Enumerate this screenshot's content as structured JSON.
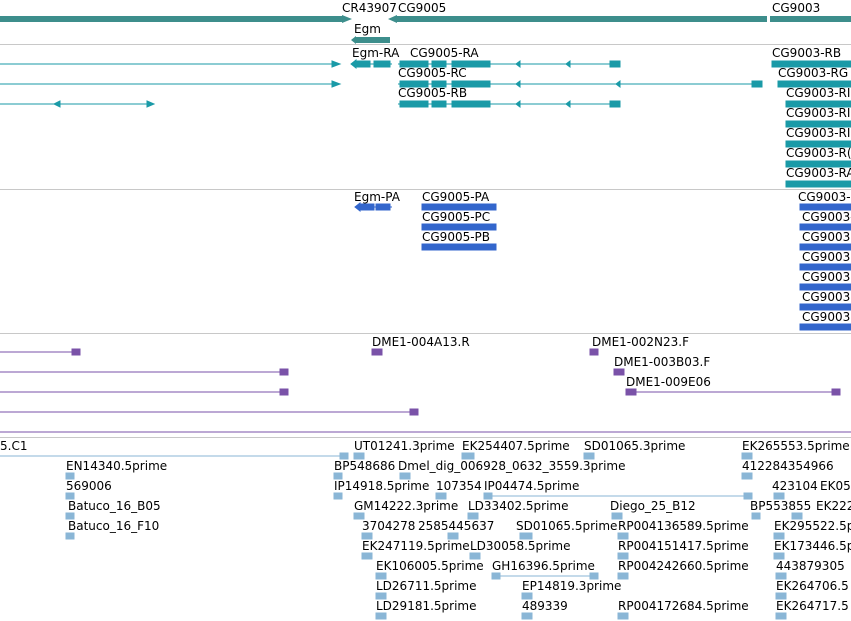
{
  "colors": {
    "gene": "#3d8e8c",
    "transcript": "#1a9aa7",
    "protein": "#3366cc",
    "clone": "#7a52a8",
    "est": "#8ab6d6",
    "separator": "#c8c8c8"
  },
  "tracks": {
    "genes": {
      "name": "gene-track",
      "labels": [
        {
          "id": "cr43907",
          "text": "CR43907"
        },
        {
          "id": "cg9005",
          "text": "CG9005"
        },
        {
          "id": "cg9003",
          "text": "CG9003"
        },
        {
          "id": "egm",
          "text": "Egm"
        }
      ]
    },
    "transcripts": {
      "name": "transcript-track",
      "labels": [
        {
          "id": "egm-ra",
          "text": "Egm-RA"
        },
        {
          "id": "cg9005-ra",
          "text": "CG9005-RA"
        },
        {
          "id": "cg9005-rc",
          "text": "CG9005-RC"
        },
        {
          "id": "cg9005-rb",
          "text": "CG9005-RB"
        },
        {
          "id": "cg9003-rb",
          "text": "CG9003-RB"
        },
        {
          "id": "cg9003-rg",
          "text": "CG9003-RG"
        },
        {
          "id": "cg9003-r3",
          "text": "CG9003-RI"
        },
        {
          "id": "cg9003-r4",
          "text": "CG9003-RI"
        },
        {
          "id": "cg9003-r5",
          "text": "CG9003-RI"
        },
        {
          "id": "cg9003-r6",
          "text": "CG9003-R("
        },
        {
          "id": "cg9003-ra",
          "text": "CG9003-RA"
        }
      ]
    },
    "proteins": {
      "name": "protein-track",
      "labels": [
        {
          "id": "egm-pa",
          "text": "Egm-PA"
        },
        {
          "id": "cg9005-pa",
          "text": "CG9005-PA"
        },
        {
          "id": "cg9005-pc",
          "text": "CG9005-PC"
        },
        {
          "id": "cg9005-pb",
          "text": "CG9005-PB"
        },
        {
          "id": "cg9003-p1",
          "text": "CG9003-"
        },
        {
          "id": "cg9003-p2",
          "text": "CG9003-"
        },
        {
          "id": "cg9003-p3",
          "text": "CG9003"
        },
        {
          "id": "cg9003-p4",
          "text": "CG9003"
        },
        {
          "id": "cg9003-p5",
          "text": "CG9003"
        },
        {
          "id": "cg9003-p6",
          "text": "CG9003"
        },
        {
          "id": "cg9003-p7",
          "text": "CG9003"
        }
      ]
    },
    "clones": {
      "name": "clone-track",
      "labels": [
        {
          "id": "dme1-004a13",
          "text": "DME1-004A13.R"
        },
        {
          "id": "dme1-002n23",
          "text": "DME1-002N23.F"
        },
        {
          "id": "dme1-003b03",
          "text": "DME1-003B03.F"
        },
        {
          "id": "dme1-009e06",
          "text": "DME1-009E06"
        }
      ]
    },
    "ests": {
      "name": "est-track",
      "labels": [
        {
          "id": "c1",
          "text": "5.C1"
        },
        {
          "id": "ut01241",
          "text": "UT01241.3prime"
        },
        {
          "id": "ek254407",
          "text": "EK254407.5prime"
        },
        {
          "id": "sd01065-3",
          "text": "SD01065.3prime"
        },
        {
          "id": "ek265553",
          "text": "EK265553.5prime"
        },
        {
          "id": "en14340",
          "text": "EN14340.5prime"
        },
        {
          "id": "bp548686",
          "text": "BP548686"
        },
        {
          "id": "dmel-dig",
          "text": "Dmel_dig_006928_0632_3559.3prime"
        },
        {
          "id": "412284354966",
          "text": "412284354966"
        },
        {
          "id": "569006",
          "text": "569006"
        },
        {
          "id": "ip14918",
          "text": "IP14918.5prime"
        },
        {
          "id": "107354",
          "text": "107354"
        },
        {
          "id": "ip04474",
          "text": "IP04474.5prime"
        },
        {
          "id": "423104",
          "text": "423104"
        },
        {
          "id": "ek05",
          "text": "EK05"
        },
        {
          "id": "batuco-b05",
          "text": "Batuco_16_B05"
        },
        {
          "id": "gm14222",
          "text": "GM14222.3prime"
        },
        {
          "id": "ld33402",
          "text": "LD33402.5prime"
        },
        {
          "id": "diego",
          "text": "Diego_25_B12"
        },
        {
          "id": "bp553855",
          "text": "BP553855"
        },
        {
          "id": "ek222",
          "text": "EK222"
        },
        {
          "id": "batuco-f10",
          "text": "Batuco_16_F10"
        },
        {
          "id": "3704278",
          "text": "3704278"
        },
        {
          "id": "2585445637",
          "text": "2585445637"
        },
        {
          "id": "sd01065-5",
          "text": "SD01065.5prime"
        },
        {
          "id": "rp004136589",
          "text": "RP004136589.5prime"
        },
        {
          "id": "ek295522",
          "text": "EK295522.5p"
        },
        {
          "id": "ek247119",
          "text": "EK247119.5prime"
        },
        {
          "id": "ld30058",
          "text": "LD30058.5prime"
        },
        {
          "id": "rp004151417",
          "text": "RP004151417.5prime"
        },
        {
          "id": "ek173446",
          "text": "EK173446.5p"
        },
        {
          "id": "ek106005",
          "text": "EK106005.5prime"
        },
        {
          "id": "gh16396",
          "text": "GH16396.5prime"
        },
        {
          "id": "rp004242660",
          "text": "RP004242660.5prime"
        },
        {
          "id": "443879305",
          "text": "443879305"
        },
        {
          "id": "ld26711",
          "text": "LD26711.5prime"
        },
        {
          "id": "ep14819",
          "text": "EP14819.3prime"
        },
        {
          "id": "ek264706",
          "text": "EK264706.5"
        },
        {
          "id": "ld29181",
          "text": "LD29181.5prime"
        },
        {
          "id": "489339",
          "text": "489339"
        },
        {
          "id": "rp004172684",
          "text": "RP004172684.5prime"
        },
        {
          "id": "ek264717",
          "text": "EK264717.5"
        }
      ]
    }
  }
}
